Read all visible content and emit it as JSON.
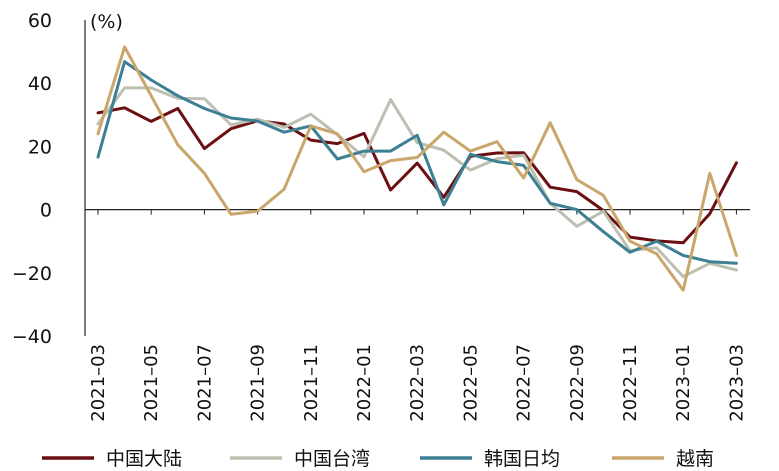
{
  "chart_data": {
    "type": "line",
    "unit_label": "(%)",
    "ylim": [
      -40,
      60
    ],
    "yticks": [
      60,
      40,
      20,
      0,
      -20,
      -40
    ],
    "ytick_labels": [
      "60",
      "40",
      "20",
      "0",
      "−20",
      "−40"
    ],
    "x": [
      "2021-03",
      "2021-04",
      "2021-05",
      "2021-06",
      "2021-07",
      "2021-08",
      "2021-09",
      "2021-10",
      "2021-11",
      "2021-12",
      "2022-01",
      "2022-02",
      "2022-03",
      "2022-04",
      "2022-05",
      "2022-06",
      "2022-07",
      "2022-08",
      "2022-09",
      "2022-10",
      "2022-11",
      "2022-12",
      "2023-01",
      "2023-02",
      "2023-03"
    ],
    "xtick_labels": [
      "2021–03",
      "2021–05",
      "2021–07",
      "2021–09",
      "2021–11",
      "2022–01",
      "2022–03",
      "2022–05",
      "2022–07",
      "2022–09",
      "2022–11",
      "2023–01",
      "2023–03"
    ],
    "series": [
      {
        "name": "中国大陆",
        "color": "#6b0f12",
        "values": [
          30.6,
          32.2,
          27.9,
          32.0,
          19.3,
          25.6,
          28.1,
          27.1,
          22.0,
          20.9,
          24.1,
          6.2,
          14.7,
          3.9,
          16.9,
          17.9,
          18.0,
          7.1,
          5.7,
          -0.3,
          -8.7,
          -9.9,
          -10.5,
          -1.3,
          14.8
        ]
      },
      {
        "name": "中国台湾",
        "color": "#bdbfb1",
        "values": [
          27.1,
          38.5,
          38.5,
          35.2,
          35.1,
          26.8,
          28.6,
          26.0,
          30.2,
          23.7,
          16.7,
          34.8,
          21.2,
          18.8,
          12.5,
          16.1,
          17.2,
          2.0,
          -5.3,
          -0.5,
          -13.0,
          -12.1,
          -21.2,
          -17.0,
          -19.1
        ]
      },
      {
        "name": "韩国日均",
        "color": "#3d7f93",
        "values": [
          16.6,
          46.8,
          41.0,
          36.0,
          32.0,
          29.0,
          28.0,
          24.5,
          26.5,
          16.0,
          18.5,
          18.5,
          23.5,
          1.5,
          17.5,
          15.2,
          14.0,
          2.0,
          0.0,
          -7.0,
          -13.5,
          -10.0,
          -14.5,
          -16.5,
          -17.0
        ]
      },
      {
        "name": "越南",
        "color": "#c9a66b",
        "values": [
          24.0,
          51.5,
          36.0,
          20.5,
          11.5,
          -1.5,
          -0.5,
          6.5,
          26.5,
          24.0,
          12.0,
          15.5,
          16.5,
          24.5,
          18.5,
          21.5,
          10.0,
          27.5,
          9.5,
          4.5,
          -10.0,
          -14.0,
          -25.5,
          11.5,
          -14.5
        ]
      }
    ]
  }
}
